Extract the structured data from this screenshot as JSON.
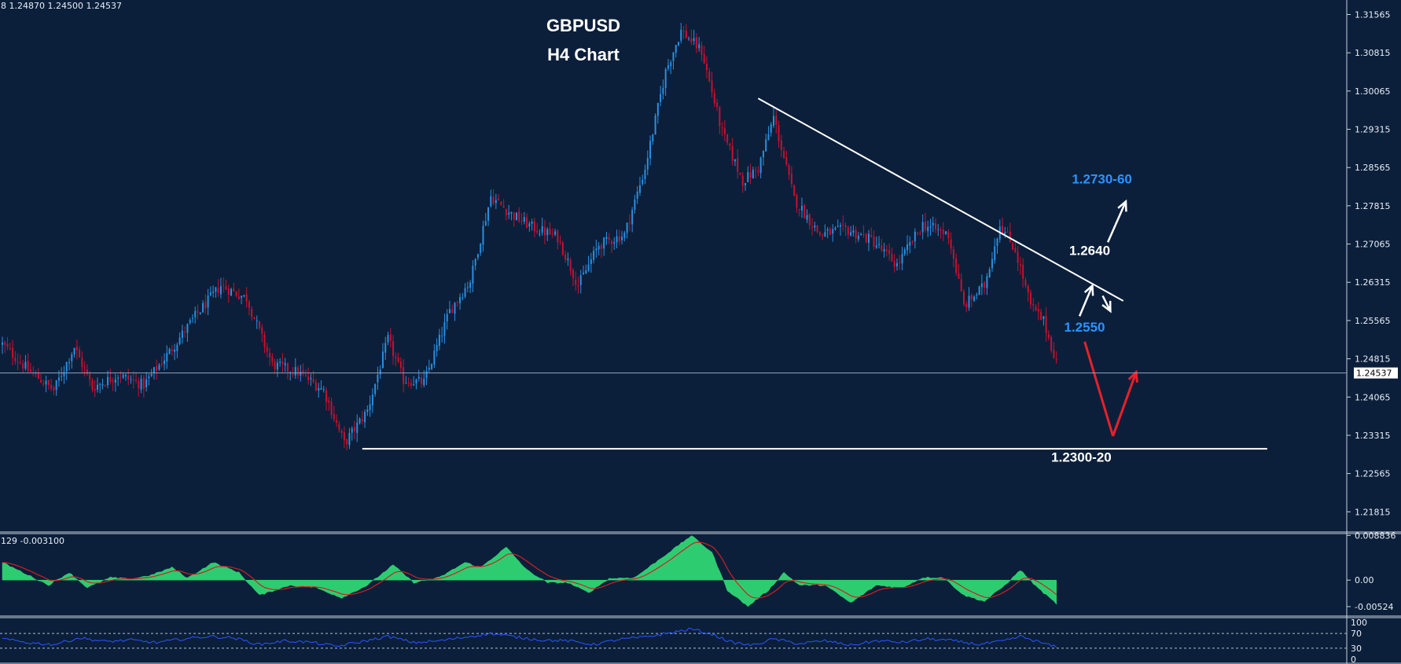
{
  "header": {
    "ohlc_readout": "8 1.24870 1.24500 1.24537",
    "macd_readout": "129 -0.003100"
  },
  "title": {
    "line1": "GBPUSD",
    "line2": "H4 Chart"
  },
  "colors": {
    "background": "#0b1f3a",
    "bull_candle": "#2b8fe0",
    "bear_candle": "#c8102e",
    "annotation_blue": "#2b93ff",
    "macd_hist": "#2ecc71",
    "signal_line": "#d02020",
    "rsi_line": "#2b55ff",
    "arrow_red": "#e8202a"
  },
  "chart_data": [
    {
      "type": "candlestick",
      "symbol": "GBPUSD",
      "timeframe": "H4",
      "ylim": [
        1.2145,
        1.3185
      ],
      "y_ticks": [
        "1.31565",
        "1.30815",
        "1.30065",
        "1.29315",
        "1.28565",
        "1.27815",
        "1.27065",
        "1.26315",
        "1.25565",
        "1.24815",
        "1.24065",
        "1.23315",
        "1.22565",
        "1.21815"
      ],
      "y_tick_values": [
        1.31565,
        1.30815,
        1.30065,
        1.29315,
        1.28565,
        1.27815,
        1.27065,
        1.26315,
        1.25565,
        1.24815,
        1.24065,
        1.23315,
        1.22565,
        1.21815
      ],
      "current_price_label": "1.24537",
      "current_price": 1.24537,
      "close_path": [
        {
          "i": 0,
          "p": 1.251
        },
        {
          "i": 10,
          "p": 1.246
        },
        {
          "i": 20,
          "p": 1.242
        },
        {
          "i": 28,
          "p": 1.2505
        },
        {
          "i": 35,
          "p": 1.2425
        },
        {
          "i": 45,
          "p": 1.245
        },
        {
          "i": 55,
          "p": 1.243
        },
        {
          "i": 65,
          "p": 1.2495
        },
        {
          "i": 75,
          "p": 1.2565
        },
        {
          "i": 85,
          "p": 1.2625
        },
        {
          "i": 95,
          "p": 1.26
        },
        {
          "i": 105,
          "p": 1.247
        },
        {
          "i": 115,
          "p": 1.2455
        },
        {
          "i": 125,
          "p": 1.242
        },
        {
          "i": 133,
          "p": 1.2315
        },
        {
          "i": 142,
          "p": 1.238
        },
        {
          "i": 150,
          "p": 1.252
        },
        {
          "i": 156,
          "p": 1.244
        },
        {
          "i": 164,
          "p": 1.2435
        },
        {
          "i": 174,
          "p": 1.2575
        },
        {
          "i": 182,
          "p": 1.2635
        },
        {
          "i": 190,
          "p": 1.28
        },
        {
          "i": 198,
          "p": 1.2765
        },
        {
          "i": 206,
          "p": 1.274
        },
        {
          "i": 216,
          "p": 1.272
        },
        {
          "i": 224,
          "p": 1.2625
        },
        {
          "i": 232,
          "p": 1.2705
        },
        {
          "i": 242,
          "p": 1.2725
        },
        {
          "i": 250,
          "p": 1.2855
        },
        {
          "i": 258,
          "p": 1.3045
        },
        {
          "i": 264,
          "p": 1.3125
        },
        {
          "i": 272,
          "p": 1.3085
        },
        {
          "i": 280,
          "p": 1.2925
        },
        {
          "i": 288,
          "p": 1.283
        },
        {
          "i": 294,
          "p": 1.2855
        },
        {
          "i": 300,
          "p": 1.2955
        },
        {
          "i": 308,
          "p": 1.2795
        },
        {
          "i": 318,
          "p": 1.2725
        },
        {
          "i": 328,
          "p": 1.2735
        },
        {
          "i": 338,
          "p": 1.2715
        },
        {
          "i": 348,
          "p": 1.2665
        },
        {
          "i": 358,
          "p": 1.2745
        },
        {
          "i": 368,
          "p": 1.2725
        },
        {
          "i": 374,
          "p": 1.2585
        },
        {
          "i": 382,
          "p": 1.2625
        },
        {
          "i": 388,
          "p": 1.2745
        },
        {
          "i": 394,
          "p": 1.2695
        },
        {
          "i": 400,
          "p": 1.2585
        },
        {
          "i": 405,
          "p": 1.2555
        },
        {
          "i": 410,
          "p": 1.2475
        }
      ],
      "lines": [
        {
          "kind": "trendline",
          "from": {
            "i": 294,
            "p": 1.2992
          },
          "to": {
            "i": 436,
            "p": 1.2595
          }
        },
        {
          "kind": "support",
          "from": {
            "i": 140,
            "p": 1.2305
          },
          "to": {
            "i": 492,
            "p": 1.2305
          }
        }
      ],
      "annotations": [
        {
          "text": "1.2730-60",
          "style": "blue",
          "at": {
            "i": 416,
            "p": 1.2825
          }
        },
        {
          "text": "1.2640",
          "style": "white",
          "at": {
            "i": 415,
            "p": 1.2685
          }
        },
        {
          "text": "1.2550",
          "style": "blue",
          "at": {
            "i": 413,
            "p": 1.2535
          }
        },
        {
          "text": "1.2300-20",
          "style": "white",
          "at": {
            "i": 408,
            "p": 1.228
          }
        }
      ],
      "arrows": [
        {
          "color": "white",
          "from": {
            "i": 430,
            "p": 1.271
          },
          "to": {
            "i": 437,
            "p": 1.279
          }
        },
        {
          "color": "white",
          "from": {
            "i": 419,
            "p": 1.2565
          },
          "to": {
            "i": 424,
            "p": 1.2625
          }
        },
        {
          "color": "white",
          "from": {
            "i": 428,
            "p": 1.2605
          },
          "to": {
            "i": 431,
            "p": 1.2575
          }
        },
        {
          "color": "red",
          "from": {
            "i": 421,
            "p": 1.2515
          },
          "to": {
            "i": 432,
            "p": 1.233
          }
        },
        {
          "color": "red",
          "from": {
            "i": 432,
            "p": 1.233
          },
          "to": {
            "i": 441,
            "p": 1.2455
          }
        }
      ]
    },
    {
      "type": "area",
      "name": "MACD",
      "ylim": [
        -0.0068,
        0.0092
      ],
      "y_ticks": [
        "0.008836",
        "0.00",
        "-0.00524"
      ],
      "y_tick_values": [
        0.008836,
        0.0,
        -0.00524
      ],
      "hist_path": [
        {
          "i": 0,
          "v": 0.0035
        },
        {
          "i": 12,
          "v": 0.0005
        },
        {
          "i": 18,
          "v": -0.001
        },
        {
          "i": 26,
          "v": 0.0015
        },
        {
          "i": 33,
          "v": -0.0015
        },
        {
          "i": 42,
          "v": 0.0005
        },
        {
          "i": 50,
          "v": 0.0002
        },
        {
          "i": 58,
          "v": 0.001
        },
        {
          "i": 66,
          "v": 0.0025
        },
        {
          "i": 72,
          "v": 0.0004
        },
        {
          "i": 82,
          "v": 0.0035
        },
        {
          "i": 92,
          "v": 0.0015
        },
        {
          "i": 100,
          "v": -0.003
        },
        {
          "i": 112,
          "v": -0.001
        },
        {
          "i": 122,
          "v": -0.0015
        },
        {
          "i": 132,
          "v": -0.0035
        },
        {
          "i": 142,
          "v": -0.001
        },
        {
          "i": 152,
          "v": 0.003
        },
        {
          "i": 160,
          "v": -0.0005
        },
        {
          "i": 170,
          "v": 0.0005
        },
        {
          "i": 180,
          "v": 0.0035
        },
        {
          "i": 186,
          "v": 0.0025
        },
        {
          "i": 196,
          "v": 0.0065
        },
        {
          "i": 204,
          "v": 0.002
        },
        {
          "i": 212,
          "v": -0.0005
        },
        {
          "i": 220,
          "v": -0.0005
        },
        {
          "i": 228,
          "v": -0.0025
        },
        {
          "i": 236,
          "v": 0.0003
        },
        {
          "i": 246,
          "v": 0.0005
        },
        {
          "i": 262,
          "v": 0.0065
        },
        {
          "i": 268,
          "v": 0.0088
        },
        {
          "i": 276,
          "v": 0.0055
        },
        {
          "i": 282,
          "v": -0.002
        },
        {
          "i": 290,
          "v": -0.0052
        },
        {
          "i": 298,
          "v": -0.002
        },
        {
          "i": 304,
          "v": 0.0015
        },
        {
          "i": 310,
          "v": -0.001
        },
        {
          "i": 320,
          "v": -0.001
        },
        {
          "i": 330,
          "v": -0.0045
        },
        {
          "i": 340,
          "v": -0.001
        },
        {
          "i": 350,
          "v": -0.0015
        },
        {
          "i": 358,
          "v": 0.0005
        },
        {
          "i": 366,
          "v": 0.0005
        },
        {
          "i": 374,
          "v": -0.003
        },
        {
          "i": 382,
          "v": -0.0042
        },
        {
          "i": 390,
          "v": -0.001
        },
        {
          "i": 396,
          "v": 0.002
        },
        {
          "i": 402,
          "v": -0.0012
        },
        {
          "i": 410,
          "v": -0.0047
        }
      ]
    },
    {
      "type": "line",
      "name": "RSI",
      "ylim": [
        0,
        100
      ],
      "y_ticks": [
        "100",
        "70",
        "30",
        "0"
      ],
      "y_tick_values": [
        100,
        70,
        30,
        0
      ],
      "levels": [
        70,
        30
      ],
      "path": [
        {
          "i": 0,
          "v": 55
        },
        {
          "i": 10,
          "v": 45
        },
        {
          "i": 20,
          "v": 40
        },
        {
          "i": 30,
          "v": 58
        },
        {
          "i": 40,
          "v": 48
        },
        {
          "i": 50,
          "v": 52
        },
        {
          "i": 60,
          "v": 45
        },
        {
          "i": 70,
          "v": 55
        },
        {
          "i": 80,
          "v": 62
        },
        {
          "i": 90,
          "v": 58
        },
        {
          "i": 100,
          "v": 40
        },
        {
          "i": 110,
          "v": 50
        },
        {
          "i": 120,
          "v": 46
        },
        {
          "i": 130,
          "v": 35
        },
        {
          "i": 140,
          "v": 48
        },
        {
          "i": 150,
          "v": 62
        },
        {
          "i": 160,
          "v": 45
        },
        {
          "i": 170,
          "v": 50
        },
        {
          "i": 180,
          "v": 60
        },
        {
          "i": 190,
          "v": 70
        },
        {
          "i": 200,
          "v": 60
        },
        {
          "i": 210,
          "v": 52
        },
        {
          "i": 220,
          "v": 50
        },
        {
          "i": 230,
          "v": 40
        },
        {
          "i": 240,
          "v": 54
        },
        {
          "i": 250,
          "v": 60
        },
        {
          "i": 260,
          "v": 72
        },
        {
          "i": 268,
          "v": 82
        },
        {
          "i": 276,
          "v": 68
        },
        {
          "i": 284,
          "v": 45
        },
        {
          "i": 292,
          "v": 38
        },
        {
          "i": 300,
          "v": 55
        },
        {
          "i": 310,
          "v": 42
        },
        {
          "i": 320,
          "v": 50
        },
        {
          "i": 330,
          "v": 38
        },
        {
          "i": 340,
          "v": 50
        },
        {
          "i": 350,
          "v": 46
        },
        {
          "i": 360,
          "v": 55
        },
        {
          "i": 370,
          "v": 50
        },
        {
          "i": 380,
          "v": 40
        },
        {
          "i": 390,
          "v": 50
        },
        {
          "i": 396,
          "v": 62
        },
        {
          "i": 404,
          "v": 45
        },
        {
          "i": 410,
          "v": 33
        }
      ]
    }
  ]
}
